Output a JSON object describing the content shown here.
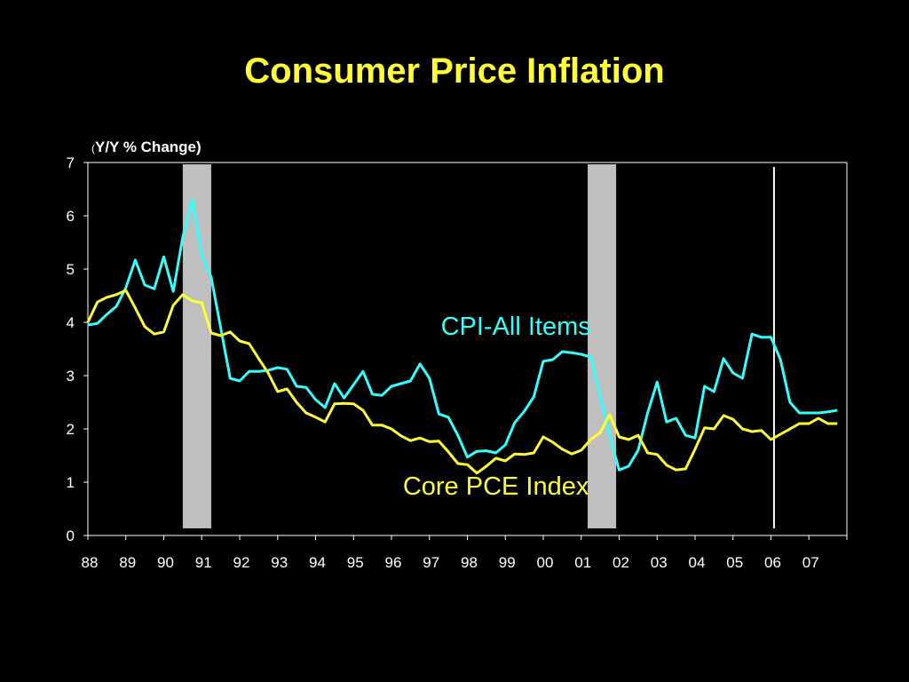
{
  "chart_data": {
    "type": "line",
    "title": "Consumer Price Inflation",
    "ylabel_open": "(",
    "ylabel": "Y/Y % Change)",
    "ylim": [
      0,
      7
    ],
    "yticks": [
      "0",
      "1",
      "2",
      "3",
      "4",
      "5",
      "6",
      "7"
    ],
    "xlim": [
      1988,
      2008
    ],
    "xtick_labels": [
      "88",
      "89",
      "90",
      "91",
      "92",
      "93",
      "94",
      "95",
      "96",
      "97",
      "98",
      "99",
      "00",
      "01",
      "02",
      "03",
      "04",
      "05",
      "06",
      "07"
    ],
    "recessions": [
      [
        1990.5,
        1991.25
      ],
      [
        2001.17,
        2001.92
      ]
    ],
    "marker_line_x": 2006.08,
    "grid": false,
    "colors": {
      "cpi": "#33ffff",
      "pce": "#ffff33",
      "recession": "#bfbfbf",
      "axis": "#ffffff",
      "title": "#ffff33"
    },
    "series": [
      {
        "name": "CPI-All Items",
        "color": "#33ffff",
        "x": [
          1988.0,
          1988.25,
          1988.5,
          1988.75,
          1989.0,
          1989.25,
          1989.5,
          1989.75,
          1990.0,
          1990.25,
          1990.5,
          1990.75,
          1991.0,
          1991.25,
          1991.5,
          1991.75,
          1992.0,
          1992.25,
          1992.5,
          1992.75,
          1993.0,
          1993.25,
          1993.5,
          1993.75,
          1994.0,
          1994.25,
          1994.5,
          1994.75,
          1995.0,
          1995.25,
          1995.5,
          1995.75,
          1996.0,
          1996.25,
          1996.5,
          1996.75,
          1997.0,
          1997.25,
          1997.5,
          1997.75,
          1998.0,
          1998.25,
          1998.5,
          1998.75,
          1999.0,
          1999.25,
          1999.5,
          1999.75,
          2000.0,
          2000.25,
          2000.5,
          2000.75,
          2001.0,
          2001.25,
          2001.5,
          2001.75,
          2002.0,
          2002.25,
          2002.5,
          2002.75,
          2003.0,
          2003.25,
          2003.5,
          2003.75,
          2004.0,
          2004.25,
          2004.5,
          2004.75,
          2005.0,
          2005.25,
          2005.5,
          2005.75,
          2006.0,
          2006.25,
          2006.5,
          2006.75,
          2007.0,
          2007.25,
          2007.5,
          2007.75
        ],
        "values": [
          3.95,
          3.98,
          4.15,
          4.3,
          4.65,
          5.17,
          4.7,
          4.63,
          5.23,
          4.58,
          5.6,
          6.3,
          5.25,
          4.85,
          3.9,
          2.95,
          2.9,
          3.08,
          3.08,
          3.1,
          3.15,
          3.12,
          2.8,
          2.78,
          2.55,
          2.4,
          2.85,
          2.58,
          2.83,
          3.08,
          2.65,
          2.63,
          2.8,
          2.85,
          2.9,
          3.22,
          2.95,
          2.28,
          2.22,
          1.88,
          1.47,
          1.58,
          1.59,
          1.55,
          1.7,
          2.12,
          2.33,
          2.6,
          3.27,
          3.3,
          3.45,
          3.43,
          3.4,
          3.35,
          2.6,
          1.87,
          1.23,
          1.3,
          1.6,
          2.3,
          2.88,
          2.13,
          2.2,
          1.88,
          1.83,
          2.8,
          2.7,
          3.32,
          3.05,
          2.95,
          3.78,
          3.72,
          3.72,
          3.3,
          2.5,
          2.3,
          2.3,
          2.3,
          2.32,
          2.35
        ]
      },
      {
        "name": "Core PCE Index",
        "color": "#ffff33",
        "x": [
          1988.0,
          1988.25,
          1988.5,
          1988.75,
          1989.0,
          1989.25,
          1989.5,
          1989.75,
          1990.0,
          1990.25,
          1990.5,
          1990.75,
          1991.0,
          1991.25,
          1991.5,
          1991.75,
          1992.0,
          1992.25,
          1992.5,
          1992.75,
          1993.0,
          1993.25,
          1993.5,
          1993.75,
          1994.0,
          1994.25,
          1994.5,
          1994.75,
          1995.0,
          1995.25,
          1995.5,
          1995.75,
          1996.0,
          1996.25,
          1996.5,
          1996.75,
          1997.0,
          1997.25,
          1997.5,
          1997.75,
          1998.0,
          1998.25,
          1998.5,
          1998.75,
          1999.0,
          1999.25,
          1999.5,
          1999.75,
          2000.0,
          2000.25,
          2000.5,
          2000.75,
          2001.0,
          2001.25,
          2001.5,
          2001.75,
          2002.0,
          2002.25,
          2002.5,
          2002.75,
          2003.0,
          2003.25,
          2003.5,
          2003.75,
          2004.0,
          2004.25,
          2004.5,
          2004.75,
          2005.0,
          2005.25,
          2005.5,
          2005.75,
          2006.0,
          2006.25,
          2006.5,
          2006.75,
          2007.0,
          2007.25,
          2007.5,
          2007.75
        ],
        "values": [
          4.0,
          4.38,
          4.47,
          4.52,
          4.6,
          4.27,
          3.92,
          3.78,
          3.82,
          4.32,
          4.52,
          4.4,
          4.37,
          3.8,
          3.75,
          3.82,
          3.65,
          3.6,
          3.32,
          3.05,
          2.7,
          2.75,
          2.5,
          2.3,
          2.22,
          2.13,
          2.47,
          2.48,
          2.47,
          2.35,
          2.07,
          2.07,
          2.0,
          1.87,
          1.78,
          1.83,
          1.76,
          1.77,
          1.57,
          1.35,
          1.33,
          1.17,
          1.3,
          1.45,
          1.4,
          1.53,
          1.52,
          1.55,
          1.85,
          1.75,
          1.62,
          1.53,
          1.6,
          1.8,
          1.93,
          2.27,
          1.85,
          1.8,
          1.88,
          1.55,
          1.52,
          1.32,
          1.23,
          1.25,
          1.62,
          2.02,
          2.0,
          2.25,
          2.18,
          2.0,
          1.95,
          1.97,
          1.8,
          1.9,
          2.0,
          2.1,
          2.1,
          2.2,
          2.1,
          2.1
        ]
      }
    ],
    "annotations": [
      {
        "text": "CPI-All Items",
        "series": "CPI-All Items",
        "color": "#33ffff",
        "x": 1997.3,
        "y": 3.77
      },
      {
        "text": "Core PCE Index",
        "series": "Core PCE Index",
        "color": "#ffff33",
        "x": 1996.3,
        "y": 0.77
      }
    ]
  }
}
